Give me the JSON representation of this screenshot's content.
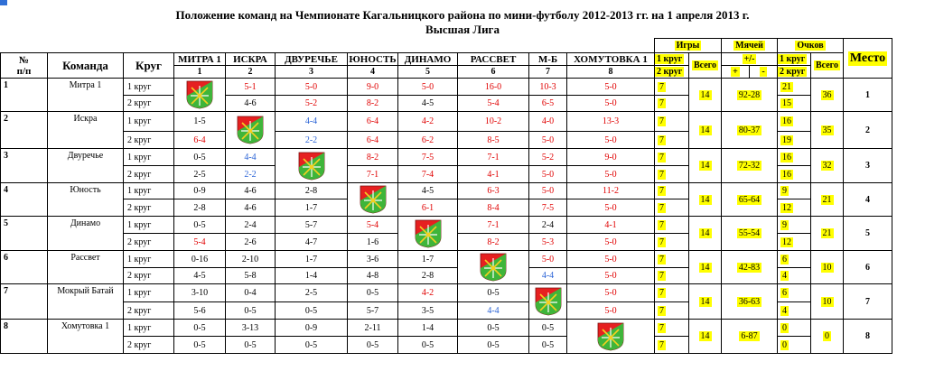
{
  "title_line1": "Положение команд на Чемпионате Кагальницкого района по мини-футболу 2012-2013 гг. на 1 апреля 2013 г.",
  "title_line2": "Высшая Лига",
  "headers": {
    "num": "№",
    "num2": "п/п",
    "team": "Команда",
    "round": "Круг",
    "games": "Игры",
    "games_r1": "1 круг",
    "games_r2": "2 круг",
    "total": "Всего",
    "goals": "Мячей",
    "goals_pm": "+/-",
    "plus": "+",
    "minus": "-",
    "points": "Очков",
    "points_r1": "1 круг",
    "points_r2": "2 круг",
    "points_total": "Всего",
    "place": "Место"
  },
  "columns": [
    {
      "name": "МИТРА 1",
      "num": "1"
    },
    {
      "name": "ИСКРА",
      "num": "2"
    },
    {
      "name": "ДВУРЕЧЬЕ",
      "num": "3"
    },
    {
      "name": "ЮНОСТЬ",
      "num": "4"
    },
    {
      "name": "ДИНАМО",
      "num": "5"
    },
    {
      "name": "РАССВЕТ",
      "num": "6"
    },
    {
      "name": "М-Б",
      "num": "7"
    },
    {
      "name": "ХОМУТОВКА 1",
      "num": "8"
    }
  ],
  "round1": "1 круг",
  "round2": "2 круг",
  "colors": {
    "loss": "#e00000",
    "draw": "#2a63d6",
    "win": "#000000",
    "highlight": "#ffff00"
  },
  "teams": [
    {
      "num": "1",
      "name": "Митра 1",
      "r1": [
        {
          "t": "emblem"
        },
        {
          "t": "5-1",
          "c": "red"
        },
        {
          "t": "5-0",
          "c": "red"
        },
        {
          "t": "9-0",
          "c": "red"
        },
        {
          "t": "5-0",
          "c": "red"
        },
        {
          "t": "16-0",
          "c": "red"
        },
        {
          "t": "10-3",
          "c": "red"
        },
        {
          "t": "5-0",
          "c": "red"
        }
      ],
      "r2": [
        {
          "t": ""
        },
        {
          "t": "4-6",
          "c": "black"
        },
        {
          "t": "5-2",
          "c": "red"
        },
        {
          "t": "8-2",
          "c": "red"
        },
        {
          "t": "4-5",
          "c": "black"
        },
        {
          "t": "5-4",
          "c": "red"
        },
        {
          "t": "6-5",
          "c": "red"
        },
        {
          "t": "5-0",
          "c": "red"
        }
      ],
      "games_r1": "7",
      "games_r2": "7",
      "games_total": "14",
      "goals": "92-28",
      "points_r1": "21",
      "points_r2": "15",
      "points_total": "36",
      "place": "1"
    },
    {
      "num": "2",
      "name": "Искра",
      "r1": [
        {
          "t": "1-5",
          "c": "black"
        },
        {
          "t": "emblem"
        },
        {
          "t": "4-4",
          "c": "blue"
        },
        {
          "t": "6-4",
          "c": "red"
        },
        {
          "t": "4-2",
          "c": "red"
        },
        {
          "t": "10-2",
          "c": "red"
        },
        {
          "t": "4-0",
          "c": "red"
        },
        {
          "t": "13-3",
          "c": "red"
        }
      ],
      "r2": [
        {
          "t": "6-4",
          "c": "red"
        },
        {
          "t": ""
        },
        {
          "t": "2-2",
          "c": "blue"
        },
        {
          "t": "6-4",
          "c": "red"
        },
        {
          "t": "6-2",
          "c": "red"
        },
        {
          "t": "8-5",
          "c": "red"
        },
        {
          "t": "5-0",
          "c": "red"
        },
        {
          "t": "5-0",
          "c": "red"
        }
      ],
      "games_r1": "7",
      "games_r2": "7",
      "games_total": "14",
      "goals": "80-37",
      "points_r1": "16",
      "points_r2": "19",
      "points_total": "35",
      "place": "2"
    },
    {
      "num": "3",
      "name": "Двуречье",
      "r1": [
        {
          "t": "0-5",
          "c": "black"
        },
        {
          "t": "4-4",
          "c": "blue"
        },
        {
          "t": "emblem"
        },
        {
          "t": "8-2",
          "c": "red"
        },
        {
          "t": "7-5",
          "c": "red"
        },
        {
          "t": "7-1",
          "c": "red"
        },
        {
          "t": "5-2",
          "c": "red"
        },
        {
          "t": "9-0",
          "c": "red"
        }
      ],
      "r2": [
        {
          "t": "2-5",
          "c": "black"
        },
        {
          "t": "2-2",
          "c": "blue"
        },
        {
          "t": ""
        },
        {
          "t": "7-1",
          "c": "red"
        },
        {
          "t": "7-4",
          "c": "red"
        },
        {
          "t": "4-1",
          "c": "red"
        },
        {
          "t": "5-0",
          "c": "red"
        },
        {
          "t": "5-0",
          "c": "red"
        }
      ],
      "games_r1": "7",
      "games_r2": "7",
      "games_total": "14",
      "goals": "72-32",
      "points_r1": "16",
      "points_r2": "16",
      "points_total": "32",
      "place": "3"
    },
    {
      "num": "4",
      "name": "Юность",
      "r1": [
        {
          "t": "0-9",
          "c": "black"
        },
        {
          "t": "4-6",
          "c": "black"
        },
        {
          "t": "2-8",
          "c": "black"
        },
        {
          "t": "emblem"
        },
        {
          "t": "4-5",
          "c": "black"
        },
        {
          "t": "6-3",
          "c": "red"
        },
        {
          "t": "5-0",
          "c": "red"
        },
        {
          "t": "11-2",
          "c": "red"
        }
      ],
      "r2": [
        {
          "t": "2-8",
          "c": "black"
        },
        {
          "t": "4-6",
          "c": "black"
        },
        {
          "t": "1-7",
          "c": "black"
        },
        {
          "t": ""
        },
        {
          "t": "6-1",
          "c": "red"
        },
        {
          "t": "8-4",
          "c": "red"
        },
        {
          "t": "7-5",
          "c": "red"
        },
        {
          "t": "5-0",
          "c": "red"
        }
      ],
      "games_r1": "7",
      "games_r2": "7",
      "games_total": "14",
      "goals": "65-64",
      "points_r1": "9",
      "points_r2": "12",
      "points_total": "21",
      "place": "4"
    },
    {
      "num": "5",
      "name": "Динамо",
      "r1": [
        {
          "t": "0-5",
          "c": "black"
        },
        {
          "t": "2-4",
          "c": "black"
        },
        {
          "t": "5-7",
          "c": "black"
        },
        {
          "t": "5-4",
          "c": "red"
        },
        {
          "t": "emblem"
        },
        {
          "t": "7-1",
          "c": "red"
        },
        {
          "t": "2-4",
          "c": "black"
        },
        {
          "t": "4-1",
          "c": "red"
        }
      ],
      "r2": [
        {
          "t": "5-4",
          "c": "red"
        },
        {
          "t": "2-6",
          "c": "black"
        },
        {
          "t": "4-7",
          "c": "black"
        },
        {
          "t": "1-6",
          "c": "black"
        },
        {
          "t": ""
        },
        {
          "t": "8-2",
          "c": "red"
        },
        {
          "t": "5-3",
          "c": "red"
        },
        {
          "t": "5-0",
          "c": "red"
        }
      ],
      "games_r1": "7",
      "games_r2": "7",
      "games_total": "14",
      "goals": "55-54",
      "points_r1": "9",
      "points_r2": "12",
      "points_total": "21",
      "place": "5"
    },
    {
      "num": "6",
      "name": "Рассвет",
      "r1": [
        {
          "t": "0-16",
          "c": "black"
        },
        {
          "t": "2-10",
          "c": "black"
        },
        {
          "t": "1-7",
          "c": "black"
        },
        {
          "t": "3-6",
          "c": "black"
        },
        {
          "t": "1-7",
          "c": "black"
        },
        {
          "t": "emblem"
        },
        {
          "t": "5-0",
          "c": "red"
        },
        {
          "t": "5-0",
          "c": "red"
        }
      ],
      "r2": [
        {
          "t": "4-5",
          "c": "black"
        },
        {
          "t": "5-8",
          "c": "black"
        },
        {
          "t": "1-4",
          "c": "black"
        },
        {
          "t": "4-8",
          "c": "black"
        },
        {
          "t": "2-8",
          "c": "black"
        },
        {
          "t": ""
        },
        {
          "t": "4-4",
          "c": "blue"
        },
        {
          "t": "5-0",
          "c": "red"
        }
      ],
      "games_r1": "7",
      "games_r2": "7",
      "games_total": "14",
      "goals": "42-83",
      "points_r1": "6",
      "points_r2": "4",
      "points_total": "10",
      "place": "6"
    },
    {
      "num": "7",
      "name": "Мокрый Батай",
      "r1": [
        {
          "t": "3-10",
          "c": "black"
        },
        {
          "t": "0-4",
          "c": "black"
        },
        {
          "t": "2-5",
          "c": "black"
        },
        {
          "t": "0-5",
          "c": "black"
        },
        {
          "t": "4-2",
          "c": "red"
        },
        {
          "t": "0-5",
          "c": "black"
        },
        {
          "t": "emblem"
        },
        {
          "t": "5-0",
          "c": "red"
        }
      ],
      "r2": [
        {
          "t": "5-6",
          "c": "black"
        },
        {
          "t": "0-5",
          "c": "black"
        },
        {
          "t": "0-5",
          "c": "black"
        },
        {
          "t": "5-7",
          "c": "black"
        },
        {
          "t": "3-5",
          "c": "black"
        },
        {
          "t": "4-4",
          "c": "blue"
        },
        {
          "t": ""
        },
        {
          "t": "5-0",
          "c": "red"
        }
      ],
      "games_r1": "7",
      "games_r2": "7",
      "games_total": "14",
      "goals": "36-63",
      "points_r1": "6",
      "points_r2": "4",
      "points_total": "10",
      "place": "7"
    },
    {
      "num": "8",
      "name": "Хомутовка 1",
      "r1": [
        {
          "t": "0-5",
          "c": "black"
        },
        {
          "t": "3-13",
          "c": "black"
        },
        {
          "t": "0-9",
          "c": "black"
        },
        {
          "t": "2-11",
          "c": "black"
        },
        {
          "t": "1-4",
          "c": "black"
        },
        {
          "t": "0-5",
          "c": "black"
        },
        {
          "t": "0-5",
          "c": "black"
        },
        {
          "t": "emblem"
        }
      ],
      "r2": [
        {
          "t": "0-5",
          "c": "black"
        },
        {
          "t": "0-5",
          "c": "black"
        },
        {
          "t": "0-5",
          "c": "black"
        },
        {
          "t": "0-5",
          "c": "black"
        },
        {
          "t": "0-5",
          "c": "black"
        },
        {
          "t": "0-5",
          "c": "black"
        },
        {
          "t": "0-5",
          "c": "black"
        },
        {
          "t": ""
        }
      ],
      "games_r1": "7",
      "games_r2": "7",
      "games_total": "14",
      "goals": "6-87",
      "points_r1": "0",
      "points_r2": "0",
      "points_total": "0",
      "place": "8"
    }
  ]
}
